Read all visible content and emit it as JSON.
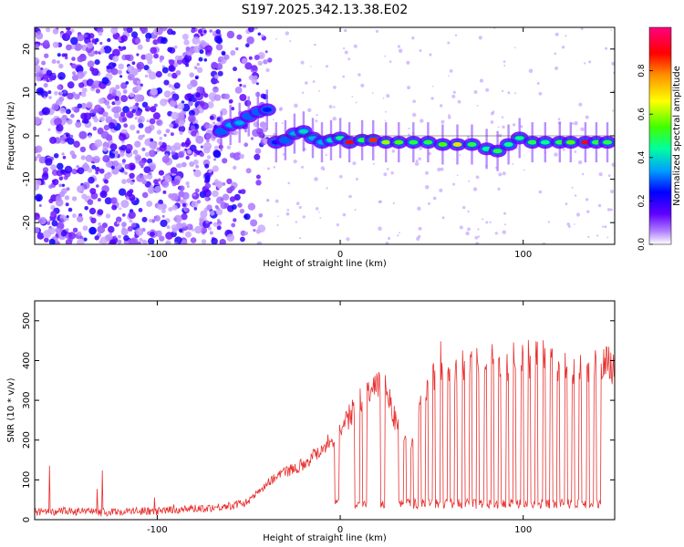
{
  "title": "S197.2025.342.13.38.E02",
  "chart_data": [
    {
      "type": "heatmap",
      "xlabel": "Height of straight line (km)",
      "ylabel": "Frequency (Hz)",
      "xlim": [
        -167,
        150
      ],
      "ylim": [
        -25,
        25
      ],
      "xticks": [
        -100,
        0,
        100
      ],
      "yticks": [
        -20,
        -10,
        0,
        10,
        20
      ],
      "colorbar": {
        "label": "Normalized spectral amplitude",
        "range": [
          0,
          1
        ],
        "ticks": [
          0.0,
          0.2,
          0.4,
          0.6,
          0.8
        ],
        "tick_labels": [
          "0.0",
          "0.2",
          "0.4",
          "0.6",
          "0.8"
        ],
        "colors": [
          "#ffffff",
          "#8000ff",
          "#0000ff",
          "#00c0ff",
          "#00ff80",
          "#80ff00",
          "#ffff00",
          "#ff8000",
          "#ff0000",
          "#ff0080"
        ]
      },
      "signal_track": [
        {
          "x": -65,
          "y": 1,
          "amp": 0.3
        },
        {
          "x": -60,
          "y": 2.5,
          "amp": 0.35
        },
        {
          "x": -55,
          "y": 3,
          "amp": 0.35
        },
        {
          "x": -50,
          "y": 4.5,
          "amp": 0.3
        },
        {
          "x": -45,
          "y": 5.5,
          "amp": 0.3
        },
        {
          "x": -40,
          "y": 6,
          "amp": 0.25
        },
        {
          "x": -35,
          "y": -1.5,
          "amp": 0.2
        },
        {
          "x": -30,
          "y": -1,
          "amp": 0.3
        },
        {
          "x": -25,
          "y": 0.5,
          "amp": 0.35
        },
        {
          "x": -20,
          "y": 1,
          "amp": 0.4
        },
        {
          "x": -15,
          "y": -0.5,
          "amp": 0.35
        },
        {
          "x": -10,
          "y": -1.5,
          "amp": 0.35
        },
        {
          "x": -5,
          "y": -1,
          "amp": 0.4
        },
        {
          "x": 0,
          "y": -0.5,
          "amp": 0.45
        },
        {
          "x": 5,
          "y": -1.5,
          "amp": 0.9
        },
        {
          "x": 12,
          "y": -1,
          "amp": 0.5
        },
        {
          "x": 18,
          "y": -1,
          "amp": 0.85
        },
        {
          "x": 25,
          "y": -1.5,
          "amp": 0.6
        },
        {
          "x": 32,
          "y": -1.5,
          "amp": 0.55
        },
        {
          "x": 40,
          "y": -1.5,
          "amp": 0.5
        },
        {
          "x": 48,
          "y": -1.5,
          "amp": 0.5
        },
        {
          "x": 56,
          "y": -2,
          "amp": 0.55
        },
        {
          "x": 64,
          "y": -2,
          "amp": 0.7
        },
        {
          "x": 72,
          "y": -2,
          "amp": 0.5
        },
        {
          "x": 80,
          "y": -3,
          "amp": 0.45
        },
        {
          "x": 86,
          "y": -3.5,
          "amp": 0.5
        },
        {
          "x": 92,
          "y": -2,
          "amp": 0.45
        },
        {
          "x": 98,
          "y": -0.5,
          "amp": 0.45
        },
        {
          "x": 105,
          "y": -1.5,
          "amp": 0.5
        },
        {
          "x": 112,
          "y": -1.5,
          "amp": 0.45
        },
        {
          "x": 120,
          "y": -1.5,
          "amp": 0.5
        },
        {
          "x": 126,
          "y": -1.5,
          "amp": 0.55
        },
        {
          "x": 134,
          "y": -1.5,
          "amp": 0.9
        },
        {
          "x": 140,
          "y": -1.5,
          "amp": 0.5
        },
        {
          "x": 146,
          "y": -1.5,
          "amp": 0.5
        }
      ]
    },
    {
      "type": "line",
      "xlabel": "Height of straight line (km)",
      "ylabel": "SNR (10 * v/v)",
      "xlim": [
        -167,
        150
      ],
      "ylim": [
        0,
        550
      ],
      "xticks": [
        -100,
        0,
        100
      ],
      "yticks": [
        0,
        100,
        200,
        300,
        400,
        500
      ],
      "series": [
        {
          "name": "SNR",
          "color": "#e8302f",
          "x": [
            -167,
            -160,
            -150,
            -140,
            -130,
            -120,
            -110,
            -100,
            -90,
            -80,
            -70,
            -60,
            -50,
            -45,
            -40,
            -35,
            -30,
            -25,
            -20,
            -15,
            -10,
            -5,
            0,
            5,
            10,
            15,
            20,
            25,
            30,
            35,
            40,
            45,
            50,
            55,
            60,
            65,
            70,
            75,
            80,
            85,
            90,
            95,
            100,
            105,
            110,
            115,
            120,
            125,
            130,
            135,
            140,
            145,
            150
          ],
          "y": [
            20,
            18,
            22,
            20,
            18,
            20,
            22,
            20,
            25,
            28,
            30,
            35,
            45,
            70,
            90,
            110,
            120,
            130,
            140,
            160,
            180,
            200,
            220,
            260,
            300,
            320,
            330,
            340,
            250,
            220,
            180,
            330,
            350,
            360,
            370,
            380,
            390,
            385,
            390,
            400,
            380,
            390,
            395,
            400,
            410,
            390,
            380,
            385,
            390,
            380,
            385,
            390,
            385
          ]
        }
      ],
      "drops": [
        -3,
        8,
        12,
        22,
        32,
        36,
        40,
        44,
        48,
        52,
        56,
        60,
        64,
        68,
        72,
        76,
        80,
        84,
        88,
        92,
        96,
        100,
        104,
        108,
        112,
        116,
        120,
        124,
        128,
        132,
        136,
        140
      ],
      "drop_level": 40
    }
  ]
}
